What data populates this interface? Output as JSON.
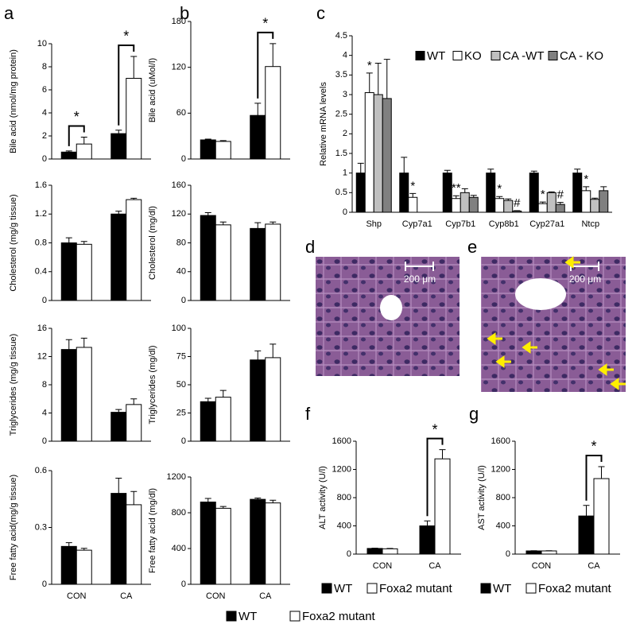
{
  "panel_labels": [
    "a",
    "b",
    "c",
    "d",
    "e",
    "f",
    "g"
  ],
  "images": [
    {
      "scale_bar": "200 μm"
    },
    {
      "scale_bar": "200 μm"
    }
  ],
  "chart_data": [
    {
      "type": "bar",
      "ylabel": "Bile acid (nmol/mg protein)",
      "categories": [
        null,
        null
      ],
      "ylim": [
        0,
        10
      ],
      "yticks": [
        0,
        2,
        4,
        6,
        8,
        10
      ],
      "annotations": [
        "*",
        "*"
      ],
      "series": [
        {
          "color": "#000000",
          "values": [
            0.6,
            2.2
          ],
          "errors": [
            0.1,
            0.3
          ]
        },
        {
          "color": "#ffffff",
          "values": [
            1.3,
            7.0
          ],
          "errors": [
            0.6,
            1.9
          ]
        }
      ]
    },
    {
      "type": "bar",
      "ylabel": "Cholesterol (mg/g tissue)",
      "categories": [
        null,
        null
      ],
      "ylim": [
        0,
        1.6
      ],
      "yticks": [
        0,
        0.4,
        0.8,
        1.2,
        1.6
      ],
      "series": [
        {
          "color": "#000000",
          "values": [
            0.8,
            1.2
          ],
          "errors": [
            0.07,
            0.04
          ]
        },
        {
          "color": "#ffffff",
          "values": [
            0.78,
            1.4
          ],
          "errors": [
            0.04,
            0.02
          ]
        }
      ]
    },
    {
      "type": "bar",
      "ylabel": "Triglycerides (mg/g tissue)",
      "categories": [
        null,
        null
      ],
      "ylim": [
        0,
        16
      ],
      "yticks": [
        0,
        4,
        8,
        12,
        16
      ],
      "series": [
        {
          "color": "#000000",
          "values": [
            13,
            4.1
          ],
          "errors": [
            1.4,
            0.4
          ]
        },
        {
          "color": "#ffffff",
          "values": [
            13.3,
            5.2
          ],
          "errors": [
            1.3,
            0.8
          ]
        }
      ]
    },
    {
      "type": "bar",
      "ylabel": "Free fatty acid(mg/g tissue)",
      "categories": [
        "CON",
        "CA"
      ],
      "ylim": [
        0,
        0.6
      ],
      "yticks": [
        0,
        0.3,
        0.6
      ],
      "series": [
        {
          "name": "WT",
          "color": "#000000",
          "values": [
            0.2,
            0.48
          ],
          "errors": [
            0.02,
            0.08
          ]
        },
        {
          "name": "Foxa2 mutant",
          "color": "#ffffff",
          "values": [
            0.18,
            0.42
          ],
          "errors": [
            0.01,
            0.07
          ]
        }
      ]
    },
    {
      "type": "bar",
      "ylabel": "Bile acid (uMol/l)",
      "categories": [
        null,
        null
      ],
      "ylim": [
        0,
        180
      ],
      "yticks": [
        0,
        60,
        120,
        180
      ],
      "annotations": [
        "*"
      ],
      "series": [
        {
          "color": "#000000",
          "values": [
            25,
            57
          ],
          "errors": [
            1,
            16
          ]
        },
        {
          "color": "#ffffff",
          "values": [
            23,
            121
          ],
          "errors": [
            1,
            30
          ]
        }
      ]
    },
    {
      "type": "bar",
      "ylabel": "Cholesterol (mg/dl)",
      "categories": [
        null,
        null
      ],
      "ylim": [
        0,
        160
      ],
      "yticks": [
        0,
        40,
        80,
        120,
        160
      ],
      "series": [
        {
          "color": "#000000",
          "values": [
            118,
            100
          ],
          "errors": [
            4,
            8
          ]
        },
        {
          "color": "#ffffff",
          "values": [
            105,
            106
          ],
          "errors": [
            4,
            3
          ]
        }
      ]
    },
    {
      "type": "bar",
      "ylabel": "Triglycerides (mg/dl)",
      "categories": [
        null,
        null
      ],
      "ylim": [
        0,
        100
      ],
      "yticks": [
        0,
        25,
        50,
        75,
        100
      ],
      "series": [
        {
          "color": "#000000",
          "values": [
            35,
            72
          ],
          "errors": [
            3,
            8
          ]
        },
        {
          "color": "#ffffff",
          "values": [
            39,
            74
          ],
          "errors": [
            6,
            12
          ]
        }
      ]
    },
    {
      "type": "bar",
      "ylabel": "Free fatty acid (mg/dl)",
      "categories": [
        "CON",
        "CA"
      ],
      "ylim": [
        0,
        1200
      ],
      "yticks": [
        0,
        400,
        800,
        1200
      ],
      "series": [
        {
          "color": "#000000",
          "values": [
            920,
            950
          ],
          "errors": [
            40,
            15
          ]
        },
        {
          "color": "#ffffff",
          "values": [
            850,
            910
          ],
          "errors": [
            20,
            30
          ]
        }
      ]
    },
    {
      "type": "bar",
      "ylabel": "Relative mRNA levels",
      "categories": [
        "Shp",
        "Cyp7a1",
        "Cyp7b1",
        "Cyp8b1",
        "Cyp27a1",
        "Ntcp"
      ],
      "ylim": [
        0,
        4.5
      ],
      "yticks": [
        0,
        0.5,
        1,
        1.5,
        2,
        2.5,
        3,
        3.5,
        4,
        4.5
      ],
      "annotations": [
        {
          "text": "*",
          "x": "Shp",
          "series": "KO"
        },
        {
          "text": "*",
          "x": "Cyp7a1",
          "series": "KO"
        },
        {
          "text": "**",
          "x": "Cyp7b1",
          "series": "KO"
        },
        {
          "text": "*",
          "x": "Cyp8b1",
          "series": "KO"
        },
        {
          "text": "#",
          "x": "Cyp8b1",
          "series": "CA - KO"
        },
        {
          "text": "*",
          "x": "Cyp27a1",
          "series": "KO"
        },
        {
          "text": "#",
          "x": "Cyp27a1",
          "series": "CA - KO"
        },
        {
          "text": "*",
          "x": "Ntcp",
          "series": "KO"
        }
      ],
      "series": [
        {
          "name": "WT",
          "color": "#000000",
          "values": [
            1,
            1,
            1,
            1,
            1,
            1
          ],
          "errors": [
            0.25,
            0.4,
            0.07,
            0.1,
            0.05,
            0.1
          ]
        },
        {
          "name": "KO",
          "color": "#ffffff",
          "values": [
            3.05,
            0.38,
            0.35,
            0.35,
            0.22,
            0.55
          ],
          "errors": [
            0.5,
            0.1,
            0.07,
            0.05,
            0.04,
            0.1
          ]
        },
        {
          "name": "CA -WT",
          "color": "#c0c0c0",
          "values": [
            3.0,
            null,
            0.5,
            0.3,
            0.5,
            0.33
          ],
          "errors": [
            0.8,
            null,
            0.1,
            0.04,
            0.02,
            0.03
          ]
        },
        {
          "name": "CA - KO",
          "color": "#808080",
          "values": [
            2.9,
            null,
            0.38,
            0.03,
            0.2,
            0.55
          ],
          "errors": [
            1.0,
            null,
            0.05,
            0.01,
            0.05,
            0.1
          ]
        }
      ]
    },
    {
      "type": "bar",
      "ylabel": "ALT activity (U/l)",
      "categories": [
        "CON",
        "CA"
      ],
      "ylim": [
        0,
        1600
      ],
      "yticks": [
        0,
        400,
        800,
        1200,
        1600
      ],
      "annotations": [
        "*"
      ],
      "series": [
        {
          "name": "WT",
          "color": "#000000",
          "values": [
            80,
            400
          ],
          "errors": [
            5,
            70
          ]
        },
        {
          "name": "Foxa2 mutant",
          "color": "#ffffff",
          "values": [
            75,
            1350
          ],
          "errors": [
            5,
            130
          ]
        }
      ]
    },
    {
      "type": "bar",
      "ylabel": "AST activity (U/l)",
      "categories": [
        "CON",
        "CA"
      ],
      "ylim": [
        0,
        1600
      ],
      "yticks": [
        0,
        400,
        800,
        1200,
        1600
      ],
      "annotations": [
        "*"
      ],
      "series": [
        {
          "name": "WT",
          "color": "#000000",
          "values": [
            45,
            540
          ],
          "errors": [
            3,
            150
          ]
        },
        {
          "name": "Foxa2 mutant",
          "color": "#ffffff",
          "values": [
            45,
            1070
          ],
          "errors": [
            3,
            170
          ]
        }
      ]
    }
  ]
}
